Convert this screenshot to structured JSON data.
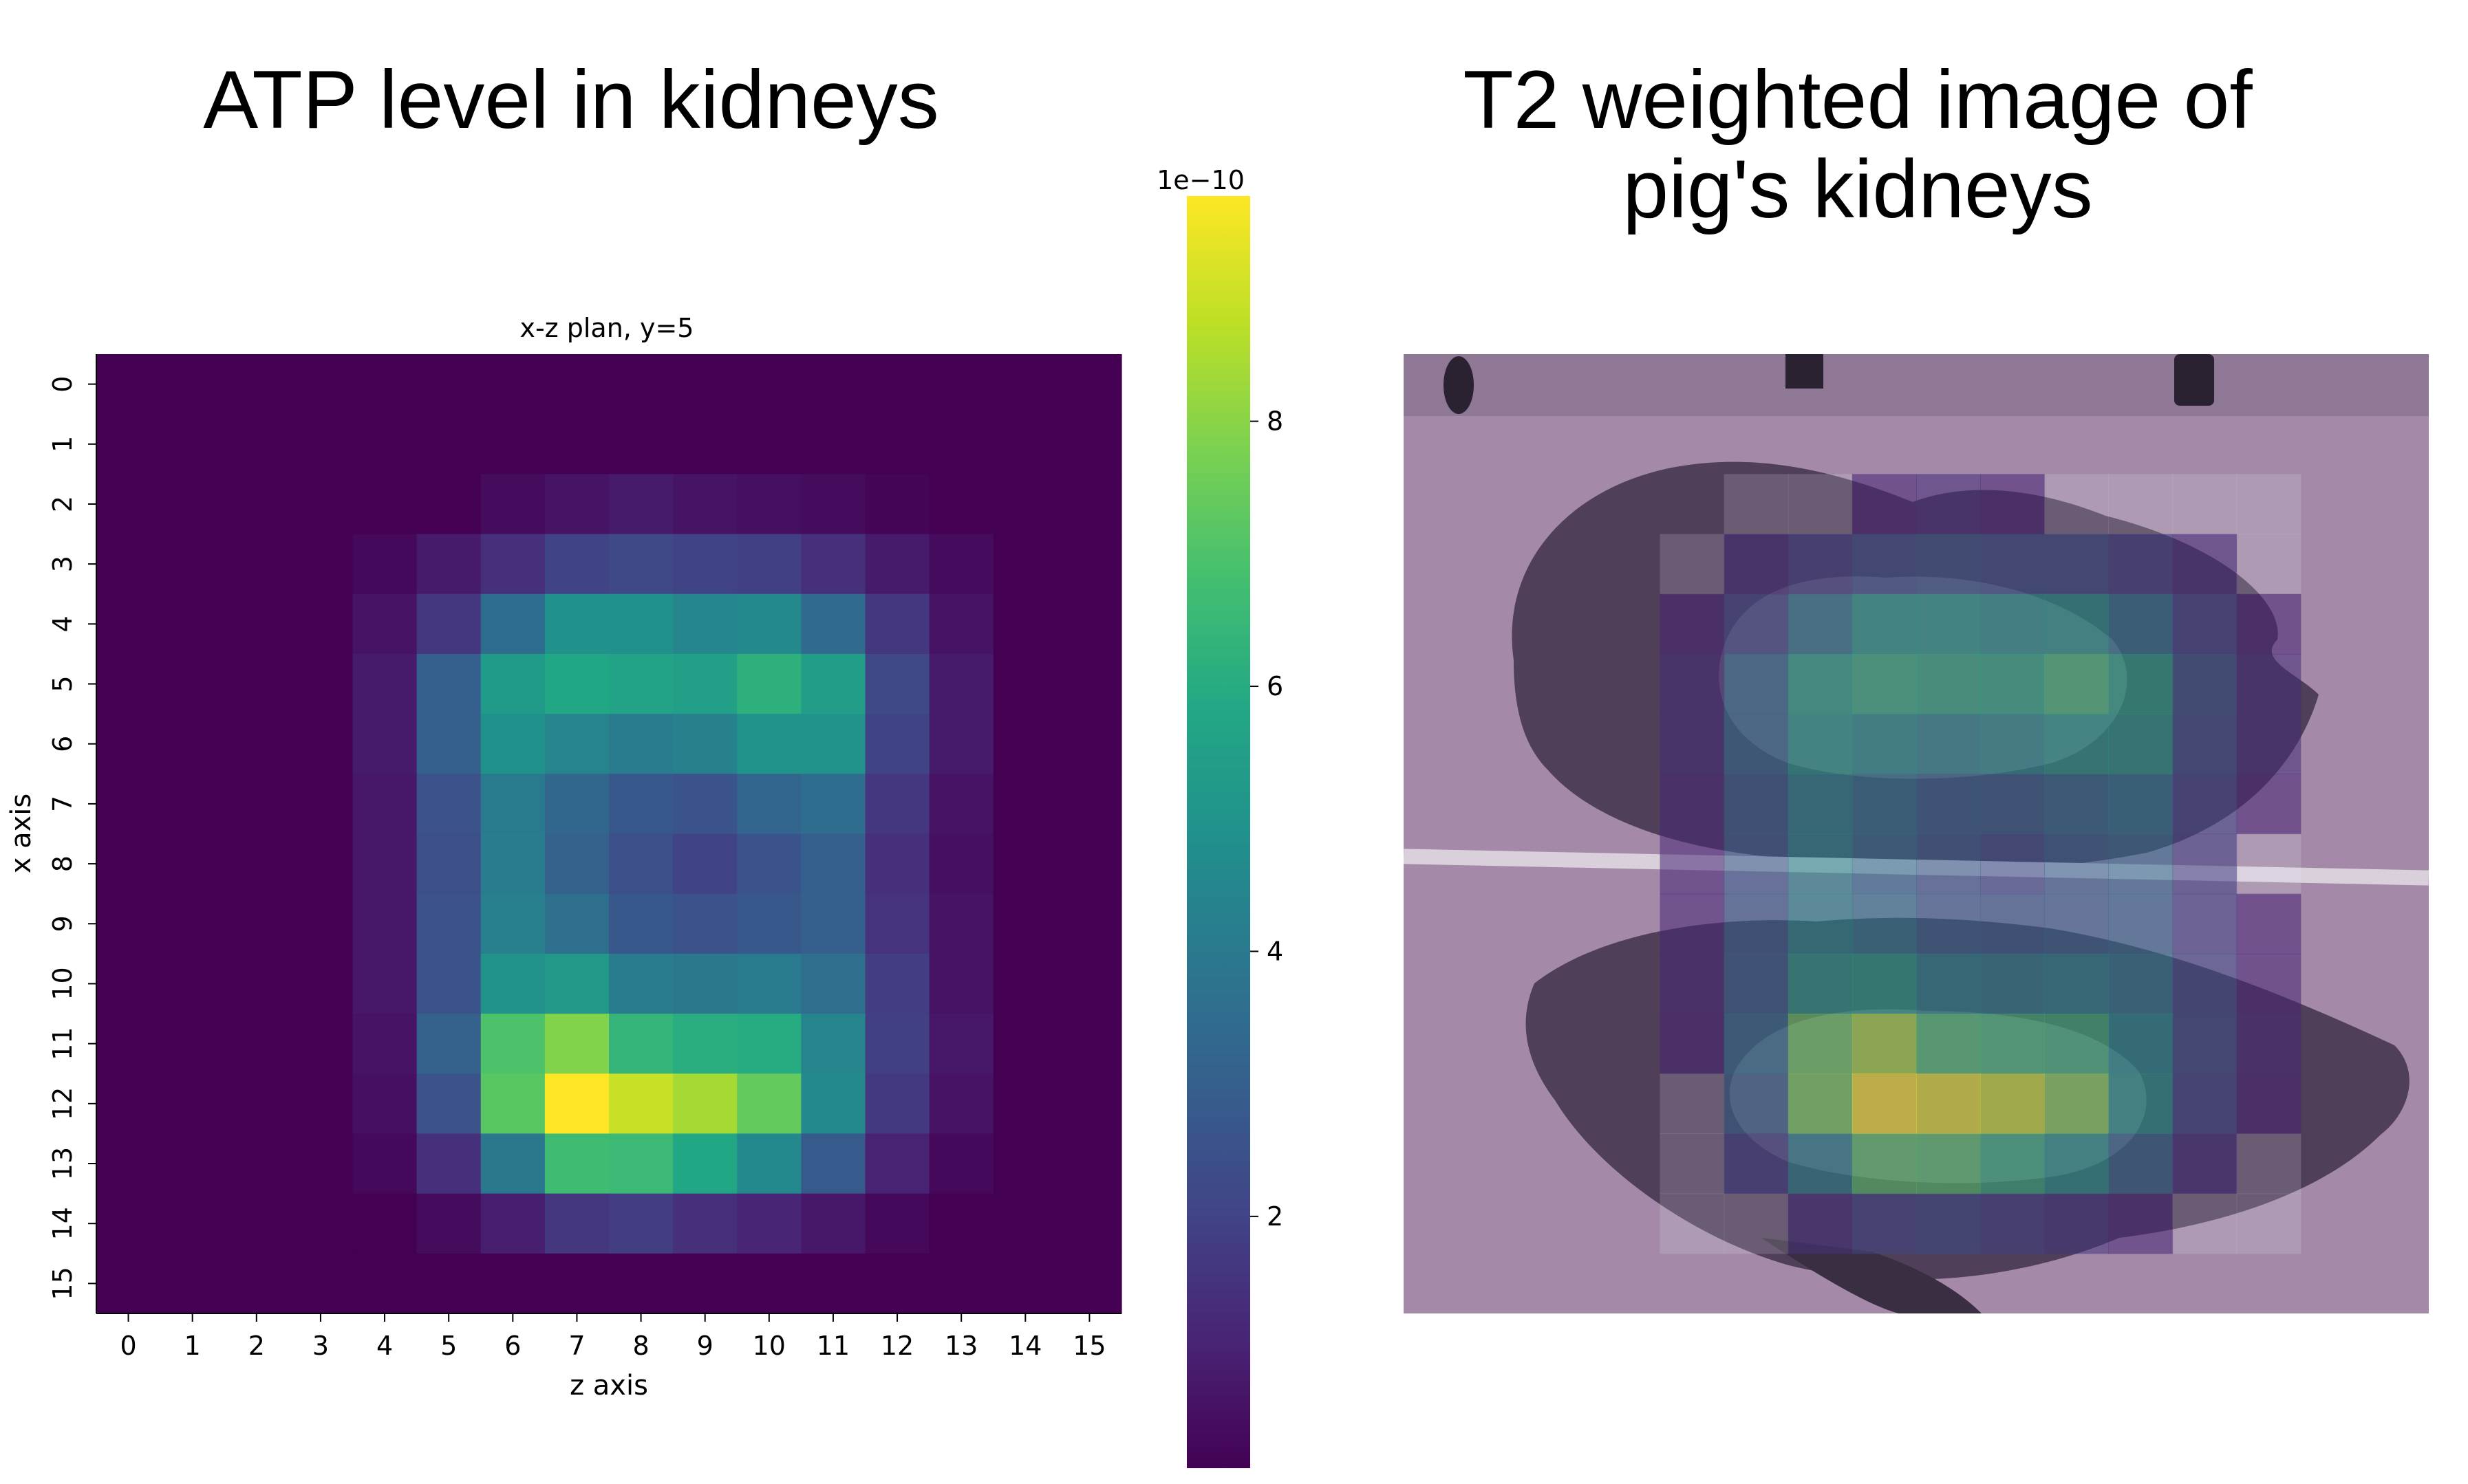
{
  "titles": {
    "left": "ATP level in kidneys",
    "right_line1": "T2 weighted image of",
    "right_line2": "pig's kidneys"
  },
  "chart_data": {
    "type": "heatmap",
    "title": "x-z plan, y=5",
    "xlabel": "z axis",
    "ylabel": "x axis",
    "x_ticks": [
      "0",
      "1",
      "2",
      "3",
      "4",
      "5",
      "6",
      "7",
      "8",
      "9",
      "10",
      "11",
      "12",
      "13",
      "14",
      "15"
    ],
    "y_ticks": [
      "0",
      "1",
      "2",
      "3",
      "4",
      "5",
      "6",
      "7",
      "8",
      "9",
      "10",
      "11",
      "12",
      "13",
      "14",
      "15"
    ],
    "colorbar": {
      "exponent_label": "1e−10",
      "ticks": [
        2,
        4,
        6,
        8
      ],
      "range": [
        0.1,
        9.7
      ],
      "colormap": "viridis"
    },
    "values": [
      [
        0,
        0,
        0,
        0,
        0,
        0,
        0,
        0,
        0,
        0,
        0,
        0,
        0,
        0,
        0,
        0
      ],
      [
        0,
        0,
        0,
        0,
        0,
        0,
        0,
        0,
        0,
        0,
        0,
        0,
        0,
        0,
        0,
        0
      ],
      [
        0,
        0,
        0,
        0,
        0,
        0.1,
        0.4,
        0.6,
        0.8,
        0.6,
        0.5,
        0.4,
        0.2,
        0.1,
        0,
        0
      ],
      [
        0,
        0,
        0,
        0,
        0.3,
        0.8,
        1.4,
        2.0,
        2.2,
        2.0,
        1.9,
        1.4,
        0.8,
        0.4,
        0,
        0
      ],
      [
        0,
        0,
        0,
        0,
        0.6,
        1.6,
        3.5,
        4.9,
        4.9,
        4.5,
        4.6,
        3.4,
        1.6,
        0.6,
        0,
        0
      ],
      [
        0,
        0,
        0,
        0,
        0.8,
        3.0,
        5.3,
        5.8,
        5.6,
        5.5,
        6.2,
        5.4,
        2.2,
        0.8,
        0,
        0
      ],
      [
        0,
        0,
        0,
        0,
        0.8,
        3.0,
        4.9,
        4.4,
        4.1,
        4.3,
        5.0,
        5.0,
        2.0,
        0.8,
        0,
        0
      ],
      [
        0,
        0,
        0,
        0,
        0.7,
        2.5,
        4.0,
        3.3,
        2.7,
        2.6,
        3.2,
        3.5,
        1.6,
        0.6,
        0,
        0
      ],
      [
        0,
        0,
        0,
        0,
        0.7,
        2.4,
        4.1,
        3.1,
        2.4,
        2.0,
        2.6,
        3.0,
        1.4,
        0.5,
        0,
        0
      ],
      [
        0,
        0,
        0,
        0,
        0.7,
        2.5,
        4.2,
        3.6,
        2.7,
        2.5,
        2.7,
        3.0,
        1.5,
        0.6,
        0,
        0
      ],
      [
        0,
        0,
        0,
        0,
        0.7,
        2.6,
        5.0,
        5.2,
        4.1,
        3.9,
        4.0,
        3.6,
        1.8,
        0.6,
        0,
        0
      ],
      [
        0,
        0,
        0,
        0,
        0.6,
        3.1,
        7.0,
        7.9,
        6.4,
        6.1,
        6.0,
        4.4,
        1.9,
        0.7,
        0,
        0
      ],
      [
        0,
        0,
        0,
        0,
        0.5,
        2.6,
        7.2,
        9.7,
        8.9,
        8.4,
        7.4,
        4.6,
        1.7,
        0.6,
        0,
        0
      ],
      [
        0,
        0,
        0,
        0,
        0.3,
        1.4,
        3.9,
        6.7,
        6.6,
        5.8,
        4.6,
        2.8,
        1.0,
        0.3,
        0,
        0
      ],
      [
        0,
        0,
        0,
        0,
        0.1,
        0.4,
        0.9,
        1.6,
        1.8,
        1.4,
        1.1,
        0.7,
        0.3,
        0.1,
        0,
        0
      ],
      [
        0,
        0,
        0,
        0,
        0,
        0,
        0,
        0,
        0,
        0,
        0,
        0,
        0,
        0,
        0,
        0
      ]
    ]
  },
  "mri_panel": {
    "tint_color": "#a48aa8",
    "overlay_alpha": 0.55
  }
}
